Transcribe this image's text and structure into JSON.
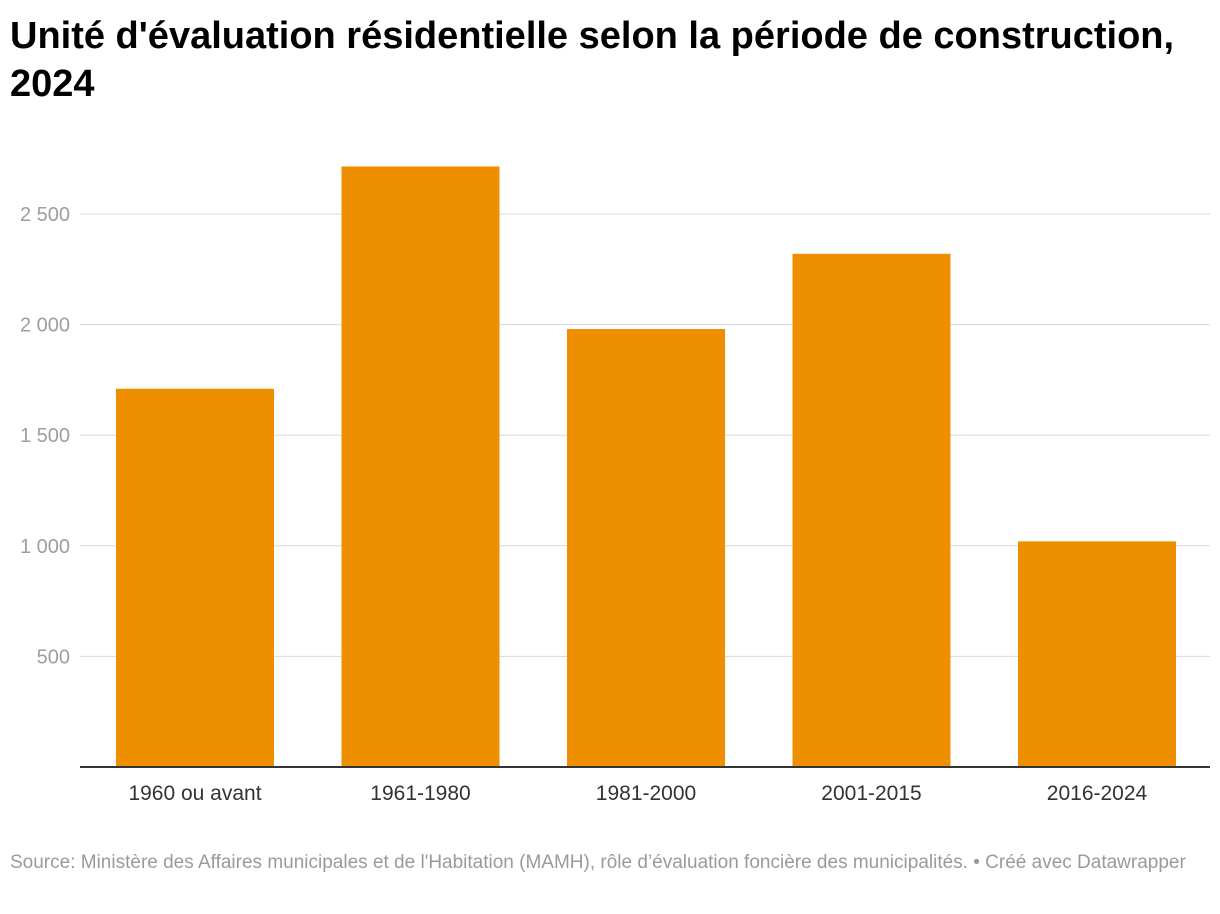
{
  "title": "Unité d'évaluation résidentielle selon la période de construction, 2024",
  "footer": {
    "source": "Source: Ministère des Affaires municipales et de l'Habitation (MAMH), rôle d’évaluation foncière des municipalités. • Créé avec Datawrapper"
  },
  "colors": {
    "bar": "#ee8f00",
    "grid": "#d9d9d9",
    "axis_text": "#9e9e9e"
  },
  "chart_data": {
    "type": "bar",
    "categories": [
      "1960 ou avant",
      "1961-1980",
      "1981-2000",
      "2001-2015",
      "2016-2024"
    ],
    "values": [
      1710,
      2715,
      1980,
      2320,
      1020
    ],
    "ylim": [
      0,
      2750
    ],
    "yticks": [
      500,
      1000,
      1500,
      2000,
      2500
    ],
    "ytick_labels": [
      "500",
      "1 000",
      "1 500",
      "2 000",
      "2 500"
    ],
    "xlabel": "",
    "ylabel": "",
    "grid": true,
    "legend": "none"
  }
}
